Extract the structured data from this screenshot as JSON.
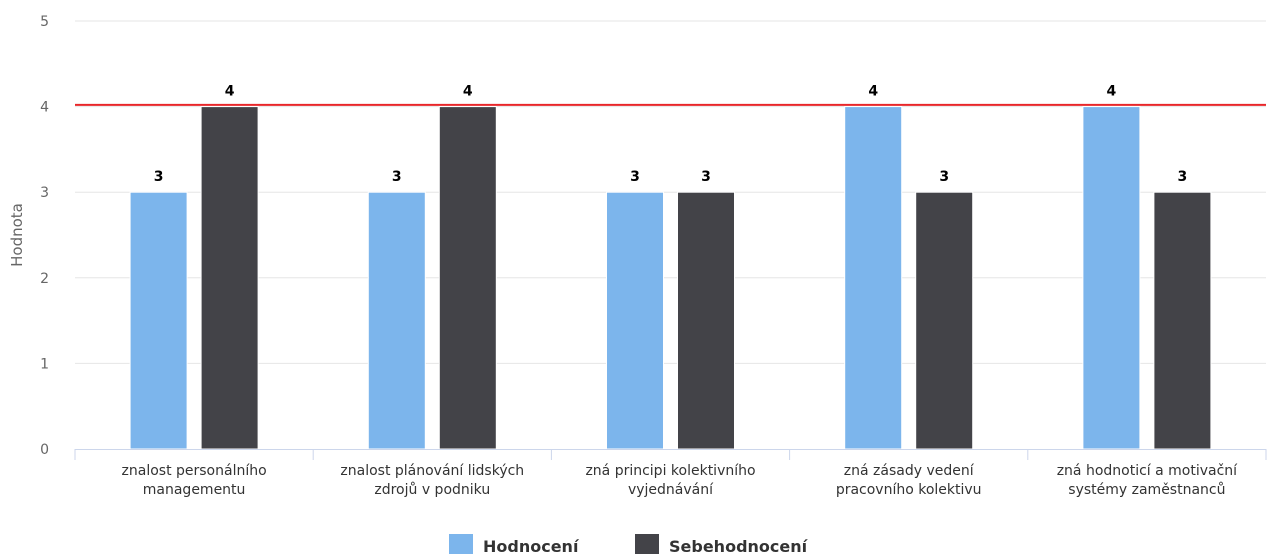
{
  "chart_data": {
    "type": "bar",
    "ylabel": "Hodnota",
    "ylim": [
      0,
      5
    ],
    "yticks": [
      0,
      1,
      2,
      3,
      4,
      5
    ],
    "categories": [
      [
        "znalost personálního",
        "managementu"
      ],
      [
        "znalost plánování lidských",
        "zdrojů v podniku"
      ],
      [
        "zná principi kolektivního",
        "vyjednávání"
      ],
      [
        "zná zásady vedení",
        "pracovního kolektivu"
      ],
      [
        "zná hodnoticí a motivační",
        "systémy zaměstnanců"
      ]
    ],
    "series": [
      {
        "name": "Hodnocení",
        "values": [
          3,
          3,
          3,
          4,
          4
        ],
        "color": "#7cb5ec"
      },
      {
        "name": "Sebehodnocení",
        "values": [
          4,
          4,
          3,
          3,
          3
        ],
        "color": "#434348"
      }
    ],
    "reference_line": {
      "value": 4.02,
      "color": "#e8262a"
    },
    "grid": true,
    "legend": "bottom-center"
  }
}
